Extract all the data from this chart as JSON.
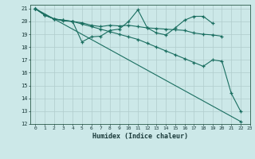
{
  "xlabel": "Humidex (Indice chaleur)",
  "bg_color": "#cce8e8",
  "grid_color": "#b0cccc",
  "line_color": "#1a6e60",
  "xlim": [
    -0.5,
    23
  ],
  "ylim": [
    12,
    21.3
  ],
  "xticks": [
    0,
    1,
    2,
    3,
    4,
    5,
    6,
    7,
    8,
    9,
    10,
    11,
    12,
    13,
    14,
    15,
    16,
    17,
    18,
    19,
    20,
    21,
    22,
    23
  ],
  "yticks": [
    12,
    13,
    14,
    15,
    16,
    17,
    18,
    19,
    20,
    21
  ],
  "lines": [
    {
      "x": [
        0,
        1,
        2,
        3,
        4,
        5,
        6,
        7,
        8,
        9,
        10,
        11,
        12,
        13,
        14,
        15,
        16,
        17,
        18,
        19,
        20
      ],
      "y": [
        21.0,
        20.5,
        20.2,
        20.1,
        20.0,
        19.9,
        19.7,
        19.6,
        19.7,
        19.65,
        19.7,
        19.6,
        19.5,
        19.45,
        19.4,
        19.35,
        19.3,
        19.1,
        19.0,
        18.95,
        18.85
      ]
    },
    {
      "x": [
        0,
        1,
        2,
        3,
        4,
        5,
        6,
        7,
        8,
        9,
        10,
        11,
        12,
        13,
        14,
        15,
        16,
        17,
        18,
        19
      ],
      "y": [
        21.0,
        20.5,
        20.2,
        20.1,
        20.0,
        18.4,
        18.8,
        18.85,
        19.3,
        19.4,
        20.0,
        20.9,
        19.5,
        19.1,
        18.95,
        19.5,
        20.1,
        20.4,
        20.4,
        19.85
      ]
    },
    {
      "x": [
        0,
        22
      ],
      "y": [
        21.0,
        12.2
      ]
    },
    {
      "x": [
        0,
        1,
        2,
        3,
        4,
        5,
        6,
        7,
        8,
        9,
        10,
        11,
        12,
        13,
        14,
        15,
        16,
        17,
        18,
        19,
        20,
        21,
        22
      ],
      "y": [
        21.0,
        20.5,
        20.2,
        20.05,
        20.0,
        19.8,
        19.6,
        19.4,
        19.2,
        19.0,
        18.8,
        18.6,
        18.3,
        18.0,
        17.7,
        17.4,
        17.1,
        16.8,
        16.5,
        17.0,
        16.9,
        14.4,
        13.0
      ]
    }
  ]
}
